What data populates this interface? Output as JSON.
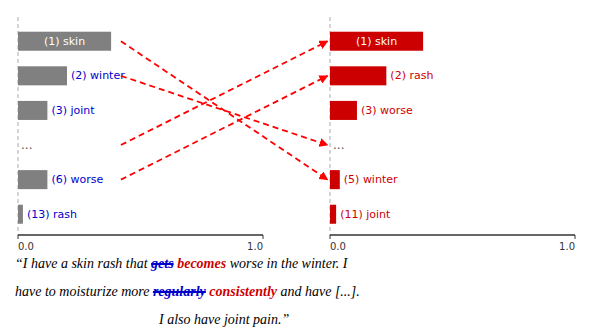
{
  "chart_data": [
    {
      "type": "bar",
      "orientation": "horizontal",
      "categories": [
        "(1) skin",
        "(2) winter",
        "(3) joint",
        "...",
        "(6) worse",
        "(13) rash"
      ],
      "values": [
        0.38,
        0.2,
        0.12,
        null,
        0.12,
        0.02
      ],
      "color": "#808080",
      "label_color": "#0000cc",
      "xlim": [
        0.0,
        1.0
      ],
      "xticks": [
        {
          "value": 0.0,
          "label": "0.0"
        },
        {
          "value": 1.0,
          "label": "1.0"
        }
      ],
      "tick_labels": "x",
      "grid": false
    },
    {
      "type": "bar",
      "orientation": "horizontal",
      "categories": [
        "(1) skin",
        "(2) rash",
        "(3) worse",
        "...",
        "(5) winter",
        "(11) joint"
      ],
      "values": [
        0.38,
        0.23,
        0.11,
        null,
        0.04,
        0.025
      ],
      "color": "#cc0000",
      "label_color": "#cc0000",
      "xlim": [
        0.0,
        1.0
      ],
      "xticks": [
        {
          "value": 0.0,
          "label": "0.0"
        },
        {
          "value": 1.0,
          "label": "1.0"
        }
      ],
      "tick_labels": "x",
      "grid": false
    }
  ],
  "connections": {
    "color": "#ff0000",
    "pairs": [
      [
        4,
        1
      ],
      [
        3,
        0
      ],
      [
        1,
        3
      ],
      [
        0,
        4
      ]
    ]
  },
  "caption": [
    [
      {
        "text": "“I have a skin rash that ",
        "style": "normal",
        "color": "#000000"
      },
      {
        "text": "gets",
        "style": "strikethrough",
        "color": "#0000cc"
      },
      {
        "text": " ",
        "style": "normal",
        "color": "#000000"
      },
      {
        "text": "becomes",
        "style": "bold",
        "color": "#cc0000"
      },
      {
        "text": " worse in the winter. I",
        "style": "normal",
        "color": "#000000"
      }
    ],
    [
      {
        "text": "have to moisturize more ",
        "style": "normal",
        "color": "#000000"
      },
      {
        "text": "regularly",
        "style": "strikethrough",
        "color": "#0000cc"
      },
      {
        "text": " ",
        "style": "normal",
        "color": "#000000"
      },
      {
        "text": "consistently",
        "style": "bold",
        "color": "#cc0000"
      },
      {
        "text": " and have [...].",
        "style": "normal",
        "color": "#000000"
      }
    ],
    [
      {
        "text": "I also have joint pain.”",
        "style": "normal",
        "color": "#000000"
      }
    ]
  ]
}
